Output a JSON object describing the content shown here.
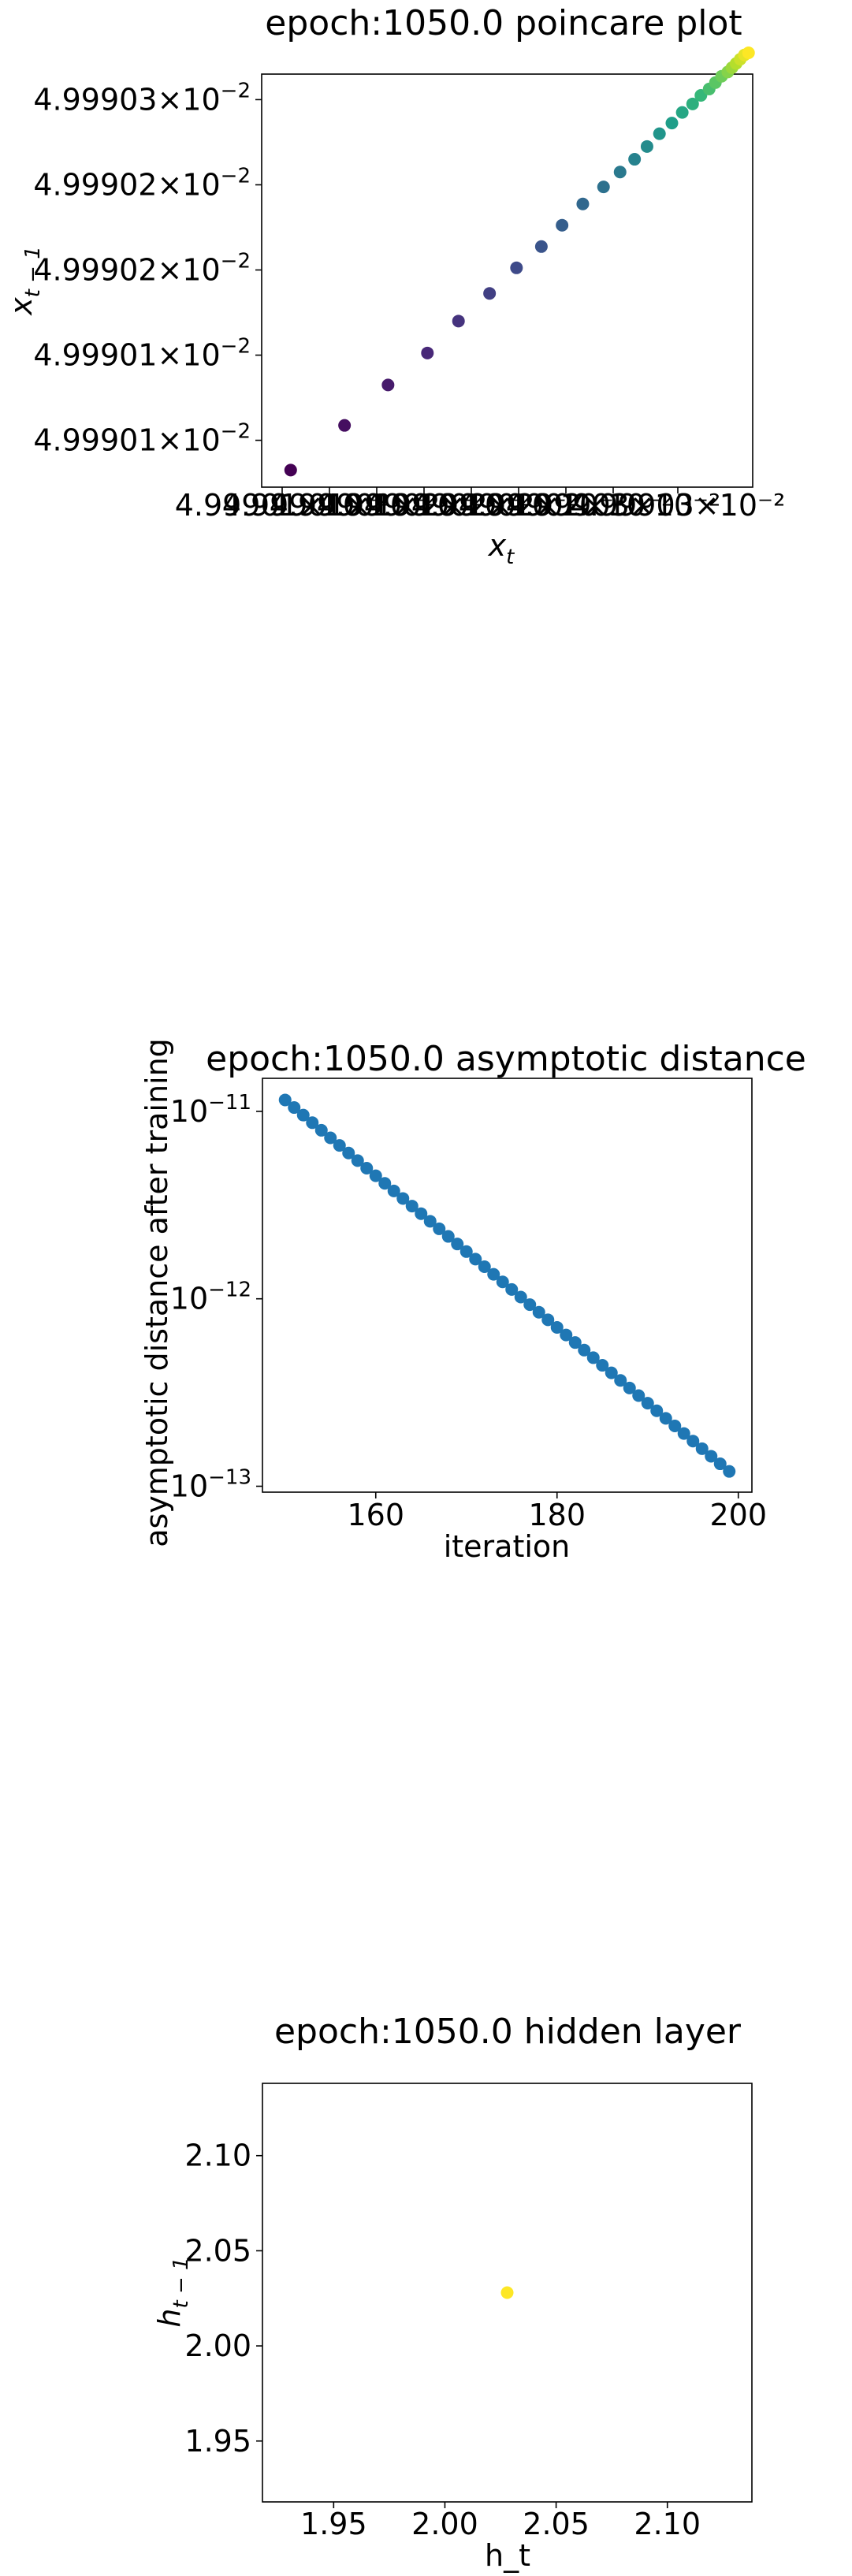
{
  "chart_data": [
    {
      "type": "scatter",
      "title": "epoch:1050.0 poincare plot",
      "xlabel": "x",
      "xlabel_sub": "t",
      "ylabel": "x",
      "ylabel_sub": "t − 1",
      "colormap": "viridis",
      "x_tick_labels": [
        "4.99901×10⁻²",
        "4.99901×10⁻²",
        "4.99901×10⁻²",
        "4.99902×10⁻²",
        "4.99902×10⁻²",
        "4.99902×10⁻²",
        "4.99902×10⁻²",
        "4.99903×10⁻²",
        "4.99903×10⁻²"
      ],
      "y_ticks": [
        {
          "mantissa": "4.99901",
          "exponent": "−2",
          "value": 0.04999008
        },
        {
          "mantissa": "4.99901",
          "exponent": "−2",
          "value": 0.04999012
        },
        {
          "mantissa": "4.99902",
          "exponent": "−2",
          "value": 0.04999016
        },
        {
          "mantissa": "4.99902",
          "exponent": "−2",
          "value": 0.0499902
        },
        {
          "mantissa": "4.99903",
          "exponent": "−2",
          "value": 0.04999024
        }
      ],
      "xlim": [
        0.049990026,
        0.049990263
      ],
      "ylim": [
        0.049990058,
        0.049990252
      ],
      "x": [
        0.04999004,
        0.049990066,
        0.049990087,
        0.049990106,
        0.049990121,
        0.049990136,
        0.049990149,
        0.049990161,
        0.049990171,
        0.049990181,
        0.049990191,
        0.049990199,
        0.049990206,
        0.049990212,
        0.049990218,
        0.049990224,
        0.049990229,
        0.049990234,
        0.049990238,
        0.049990242,
        0.049990245,
        0.049990248,
        0.049990251,
        0.049990253,
        0.049990255,
        0.049990257,
        0.049990259,
        0.049990261
      ],
      "y": [
        0.049990066,
        0.049990087,
        0.049990106,
        0.049990121,
        0.049990136,
        0.049990149,
        0.049990161,
        0.049990171,
        0.049990181,
        0.049990191,
        0.049990199,
        0.049990206,
        0.049990212,
        0.049990218,
        0.049990224,
        0.049990229,
        0.049990234,
        0.049990238,
        0.049990242,
        0.049990245,
        0.049990248,
        0.049990251,
        0.049990253,
        0.049990255,
        0.049990257,
        0.049990259,
        0.049990261,
        0.049990262
      ],
      "grid": false
    },
    {
      "type": "scatter",
      "title": "epoch:1050.0 asymptotic distance",
      "xlabel": "iteration",
      "ylabel": "asymptotic distance after training",
      "y_scale": "log",
      "color": "#1f77b4",
      "x_ticks": [
        160,
        180,
        200
      ],
      "y_ticks": [
        {
          "base": "10",
          "exponent": "−11",
          "value": 1e-11
        },
        {
          "base": "10",
          "exponent": "−12",
          "value": 1e-12
        },
        {
          "base": "10",
          "exponent": "−13",
          "value": 1e-13
        }
      ],
      "xlim": [
        147.5,
        201.5
      ],
      "ylim": [
        9.3e-14,
        1.5e-11
      ],
      "x_start": 150,
      "x_end": 199,
      "y_start": 1.15e-11,
      "y_end": 1.2e-13,
      "grid": false
    },
    {
      "type": "scatter",
      "title": "epoch:1050.0 hidden layer",
      "xlabel": "h_t",
      "ylabel": "h",
      "ylabel_sub": "t − 1",
      "x_ticks": [
        1.95,
        2.0,
        2.05,
        2.1
      ],
      "y_ticks": [
        1.95,
        2.0,
        2.05,
        2.1
      ],
      "x_tick_labels": [
        "1.95",
        "2.00",
        "2.05",
        "2.10"
      ],
      "y_tick_labels": [
        "1.95",
        "2.00",
        "2.05",
        "2.10"
      ],
      "xlim": [
        1.918,
        2.138
      ],
      "ylim": [
        1.918,
        2.138
      ],
      "points": [
        {
          "x": 2.028,
          "y": 2.028,
          "color": "#fde725"
        }
      ],
      "grid": false
    }
  ]
}
